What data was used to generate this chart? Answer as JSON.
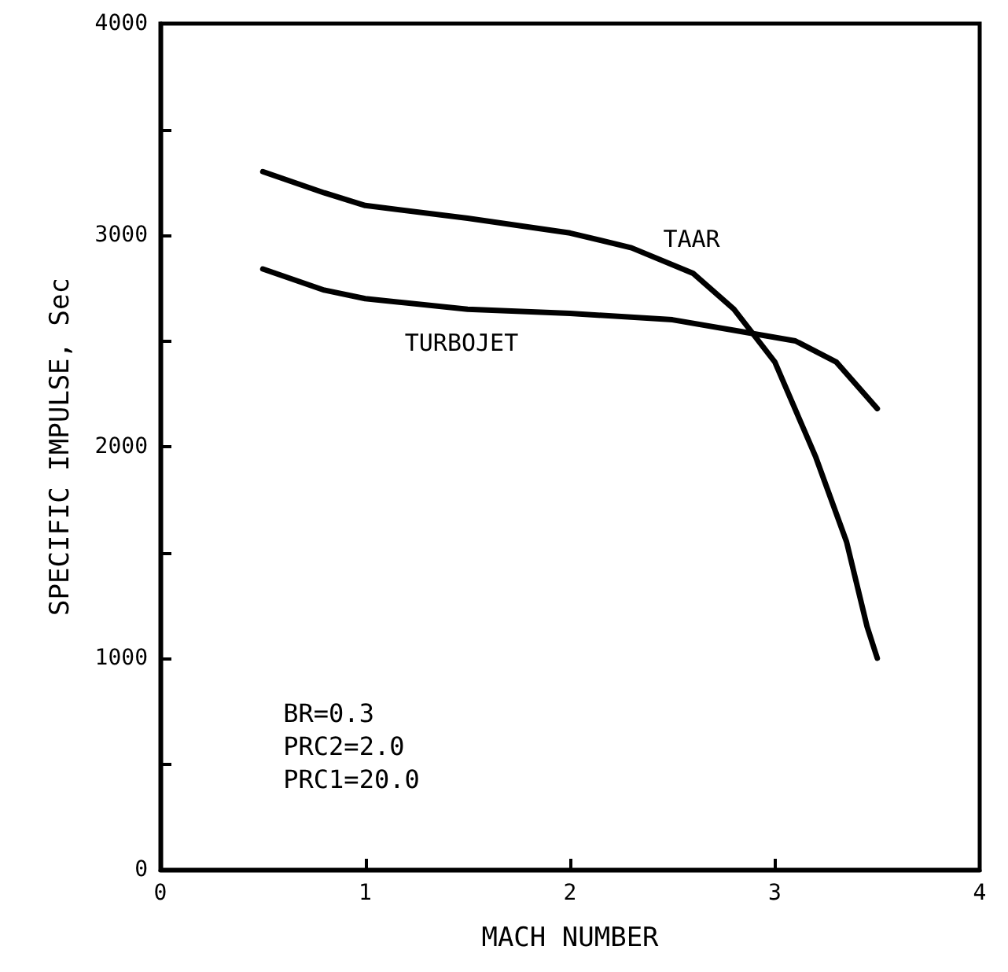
{
  "chart_data": {
    "type": "line",
    "xlabel": "MACH NUMBER",
    "ylabel": "SPECIFIC IMPULSE, Sec",
    "xlim": [
      0,
      4
    ],
    "xticks": [
      0,
      1,
      2,
      3,
      4
    ],
    "ylim": [
      0,
      4000
    ],
    "yticks": [
      0,
      {
        "value": 500,
        "label": null
      },
      1000,
      {
        "value": 1500,
        "label": null
      },
      2000,
      {
        "value": 2500,
        "label": null
      },
      3000,
      {
        "value": 3500,
        "label": null
      },
      4000
    ],
    "grid": false,
    "legend": false,
    "marker": "none",
    "line_style": "solid",
    "annotations": [
      "BR=0.3",
      "PRC2=2.0",
      "PRC1=20.0"
    ],
    "series": [
      {
        "name": "TAAR",
        "color": "#000000",
        "x": [
          0.5,
          0.8,
          1.0,
          1.5,
          2.0,
          2.3,
          2.6,
          2.8,
          3.0,
          3.2,
          3.35,
          3.45,
          3.5
        ],
        "values": [
          3300,
          3200,
          3140,
          3080,
          3010,
          2940,
          2820,
          2650,
          2400,
          1950,
          1550,
          1150,
          1000
        ]
      },
      {
        "name": "TURBOJET",
        "color": "#000000",
        "x": [
          0.5,
          0.8,
          1.0,
          1.5,
          2.0,
          2.5,
          2.8,
          3.1,
          3.3,
          3.5
        ],
        "values": [
          2840,
          2740,
          2700,
          2650,
          2630,
          2600,
          2550,
          2500,
          2400,
          2180
        ]
      }
    ]
  }
}
